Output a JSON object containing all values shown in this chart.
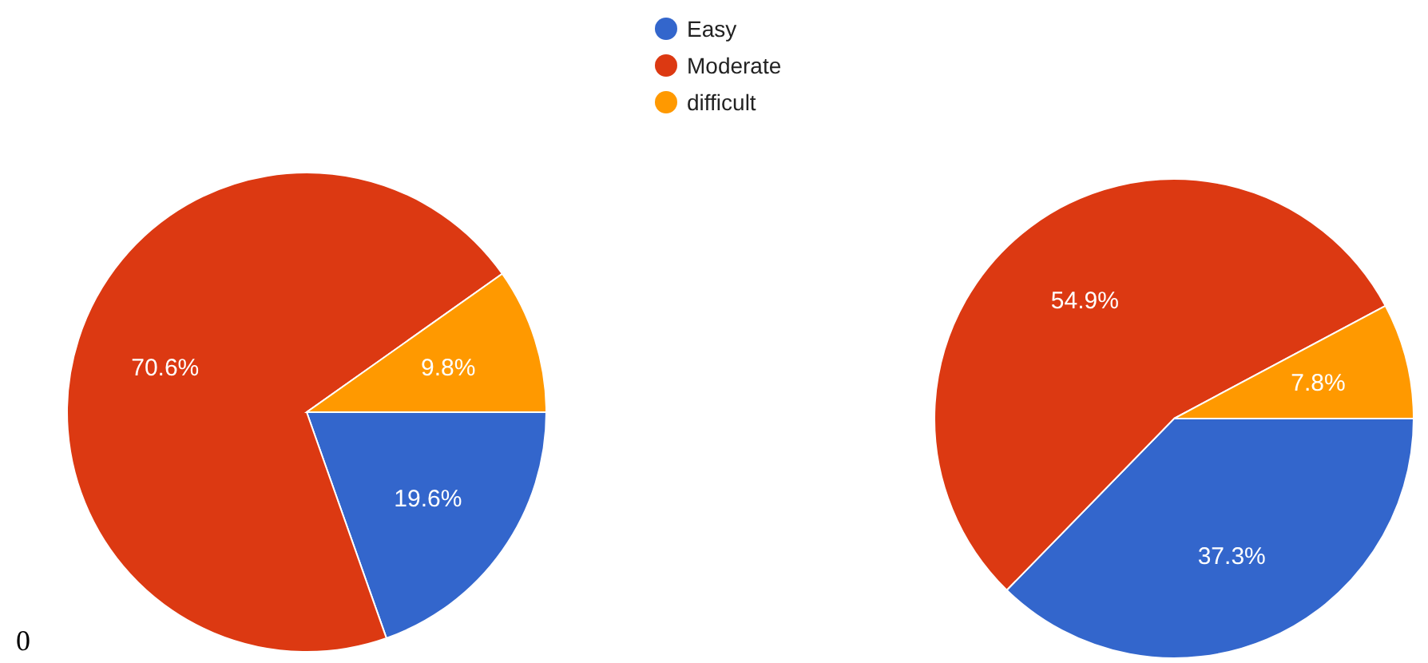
{
  "chart_data": [
    {
      "type": "pie",
      "categories": [
        "Easy",
        "Moderate",
        "difficult"
      ],
      "values": [
        19.6,
        70.6,
        9.8
      ],
      "colors": [
        "#3366cc",
        "#dc3912",
        "#ff9900"
      ],
      "value_labels": [
        "19.6%",
        "70.6%",
        "9.8%"
      ],
      "legend": "top right",
      "annotations": [
        "0"
      ]
    },
    {
      "type": "pie",
      "categories": [
        null,
        null,
        null
      ],
      "values": [
        37.3,
        54.9,
        7.8
      ],
      "colors": [
        "#3366cc",
        "#dc3912",
        "#ff9900"
      ],
      "value_labels": [
        "37.3%",
        "54.9%",
        "7.8%"
      ]
    }
  ]
}
